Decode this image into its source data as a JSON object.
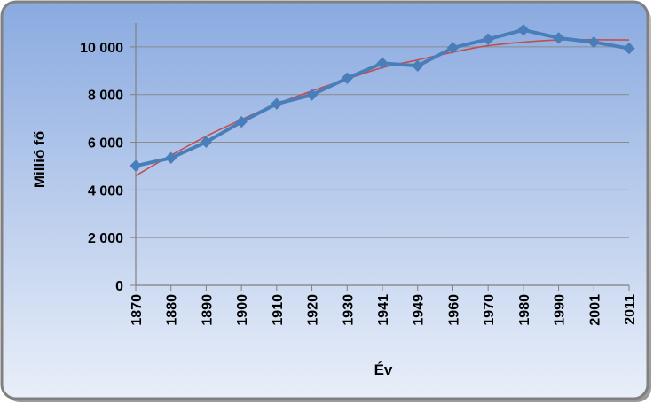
{
  "chart_data": {
    "type": "line",
    "title": "",
    "xlabel": "Év",
    "ylabel": "Millió fő",
    "categories": [
      "1870",
      "1880",
      "1890",
      "1900",
      "1910",
      "1920",
      "1930",
      "1941",
      "1949",
      "1960",
      "1970",
      "1980",
      "1990",
      "2001",
      "2011"
    ],
    "y_ticks": [
      "0",
      "2 000",
      "4 000",
      "6 000",
      "8 000",
      "10 000"
    ],
    "y_tick_values": [
      0,
      2000,
      4000,
      6000,
      8000,
      10000
    ],
    "ylim": [
      0,
      11000
    ],
    "grid": true,
    "legend": "none",
    "series": [
      {
        "values": [
          5011,
          5340,
          6009,
          6854,
          7612,
          7987,
          8685,
          9316,
          9205,
          9961,
          10322,
          10709,
          10375,
          10198,
          9938
        ],
        "color": "#4a7ebb",
        "marker": "diamond"
      },
      {
        "values": [
          4600,
          5450,
          6250,
          6950,
          7600,
          8150,
          8650,
          9130,
          9450,
          9780,
          10050,
          10200,
          10290,
          10300,
          10290
        ],
        "color": "#c0504d",
        "marker": "none"
      }
    ]
  },
  "colors": {
    "frame_border": "#7f7f7f",
    "background_top": "#8fb0e3",
    "background_bottom": "#e8eef8",
    "gridline": "#8a8a8a"
  }
}
